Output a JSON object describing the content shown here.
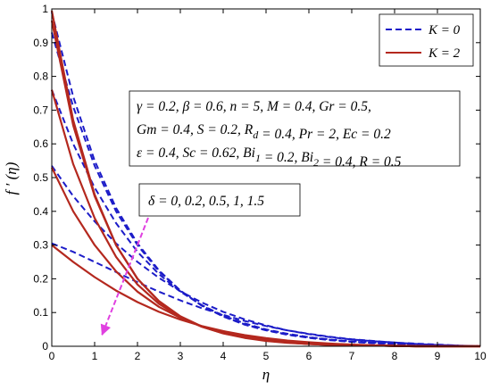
{
  "chart_data": {
    "type": "line",
    "xlabel": "η",
    "ylabel": "f ′ (η)",
    "xlim": [
      0,
      10
    ],
    "ylim": [
      0,
      1
    ],
    "xticks": [
      "0",
      "1",
      "2",
      "3",
      "4",
      "5",
      "6",
      "7",
      "8",
      "9",
      "10"
    ],
    "yticks": [
      "0",
      "0.1",
      "0.2",
      "0.3",
      "0.4",
      "0.5",
      "0.6",
      "0.7",
      "0.8",
      "0.9",
      "1"
    ],
    "grid": false,
    "legend": {
      "placement": "top-right",
      "entries": [
        {
          "label": "K = 0",
          "color": "#1c1cc8",
          "style": "dashed"
        },
        {
          "label": "K = 2",
          "color": "#b4281e",
          "style": "solid"
        }
      ]
    },
    "parameters_box": {
      "lines": [
        "γ = 0.2, β = 0.6, n = 5, M = 0.4, Gr = 0.5,",
        "Gm = 0.4, S = 0.2, R_d = 0.4, Pr = 2, Ec = 0.2",
        "ε = 0.4, Sc = 0.62, Bi_1 = 0.2, Bi_2 = 0.4, R = 0.5"
      ]
    },
    "delta_box": {
      "text": "δ = 0, 0.2, 0.5, 1, 1.5",
      "arrow_color": "#e040e0"
    },
    "x": [
      0,
      0.5,
      1,
      1.5,
      2,
      2.5,
      3,
      3.5,
      4,
      4.5,
      5,
      5.5,
      6,
      6.5,
      7,
      7.5,
      8,
      8.5,
      9,
      9.5,
      10
    ],
    "series": [
      {
        "group": "K = 0",
        "delta": 0,
        "color": "#1c1cc8",
        "dashed": true,
        "values": [
          0.99,
          0.74,
          0.55,
          0.41,
          0.305,
          0.225,
          0.165,
          0.12,
          0.088,
          0.064,
          0.047,
          0.034,
          0.025,
          0.018,
          0.013,
          0.009,
          0.006,
          0.004,
          0.002,
          0.001,
          0.0
        ]
      },
      {
        "group": "K = 0",
        "delta": 0.2,
        "color": "#1c1cc8",
        "dashed": true,
        "values": [
          0.93,
          0.71,
          0.535,
          0.4,
          0.3,
          0.222,
          0.165,
          0.121,
          0.089,
          0.065,
          0.048,
          0.035,
          0.026,
          0.019,
          0.014,
          0.01,
          0.007,
          0.004,
          0.002,
          0.001,
          0.0
        ]
      },
      {
        "group": "K = 0",
        "delta": 0.5,
        "color": "#1c1cc8",
        "dashed": true,
        "values": [
          0.76,
          0.6,
          0.47,
          0.365,
          0.28,
          0.214,
          0.162,
          0.122,
          0.091,
          0.068,
          0.05,
          0.037,
          0.027,
          0.02,
          0.015,
          0.011,
          0.008,
          0.005,
          0.003,
          0.001,
          0.0
        ]
      },
      {
        "group": "K = 0",
        "delta": 1,
        "color": "#1c1cc8",
        "dashed": true,
        "values": [
          0.535,
          0.445,
          0.37,
          0.305,
          0.25,
          0.203,
          0.163,
          0.13,
          0.102,
          0.08,
          0.062,
          0.047,
          0.036,
          0.027,
          0.02,
          0.015,
          0.011,
          0.007,
          0.004,
          0.002,
          0.0
        ]
      },
      {
        "group": "K = 0",
        "delta": 1.5,
        "color": "#1c1cc8",
        "dashed": true,
        "values": [
          0.305,
          0.28,
          0.25,
          0.22,
          0.19,
          0.162,
          0.136,
          0.113,
          0.093,
          0.075,
          0.06,
          0.047,
          0.037,
          0.028,
          0.021,
          0.016,
          0.011,
          0.008,
          0.005,
          0.002,
          0.0
        ]
      },
      {
        "group": "K = 2",
        "delta": 0,
        "color": "#b4281e",
        "dashed": false,
        "values": [
          0.995,
          0.67,
          0.45,
          0.3,
          0.2,
          0.133,
          0.088,
          0.058,
          0.038,
          0.025,
          0.016,
          0.01,
          0.007,
          0.004,
          0.003,
          0.002,
          0.001,
          0.0,
          0.0,
          0.0,
          0.0
        ]
      },
      {
        "group": "K = 2",
        "delta": 0.2,
        "color": "#b4281e",
        "dashed": false,
        "values": [
          0.965,
          0.655,
          0.445,
          0.3,
          0.2,
          0.134,
          0.089,
          0.059,
          0.039,
          0.026,
          0.017,
          0.011,
          0.007,
          0.004,
          0.003,
          0.002,
          0.001,
          0.0,
          0.0,
          0.0,
          0.0
        ]
      },
      {
        "group": "K = 2",
        "delta": 0.5,
        "color": "#b4281e",
        "dashed": false,
        "values": [
          0.76,
          0.54,
          0.38,
          0.265,
          0.183,
          0.126,
          0.086,
          0.058,
          0.039,
          0.026,
          0.017,
          0.011,
          0.007,
          0.005,
          0.003,
          0.002,
          0.001,
          0.0,
          0.0,
          0.0,
          0.0
        ]
      },
      {
        "group": "K = 2",
        "delta": 1,
        "color": "#b4281e",
        "dashed": false,
        "values": [
          0.53,
          0.4,
          0.3,
          0.222,
          0.162,
          0.117,
          0.084,
          0.059,
          0.041,
          0.029,
          0.02,
          0.013,
          0.009,
          0.006,
          0.004,
          0.002,
          0.001,
          0.0,
          0.0,
          0.0,
          0.0
        ]
      },
      {
        "group": "K = 2",
        "delta": 1.5,
        "color": "#b4281e",
        "dashed": false,
        "values": [
          0.3,
          0.25,
          0.205,
          0.165,
          0.131,
          0.102,
          0.079,
          0.06,
          0.045,
          0.033,
          0.024,
          0.017,
          0.012,
          0.008,
          0.005,
          0.003,
          0.002,
          0.001,
          0.0,
          0.0,
          0.0
        ]
      }
    ]
  }
}
